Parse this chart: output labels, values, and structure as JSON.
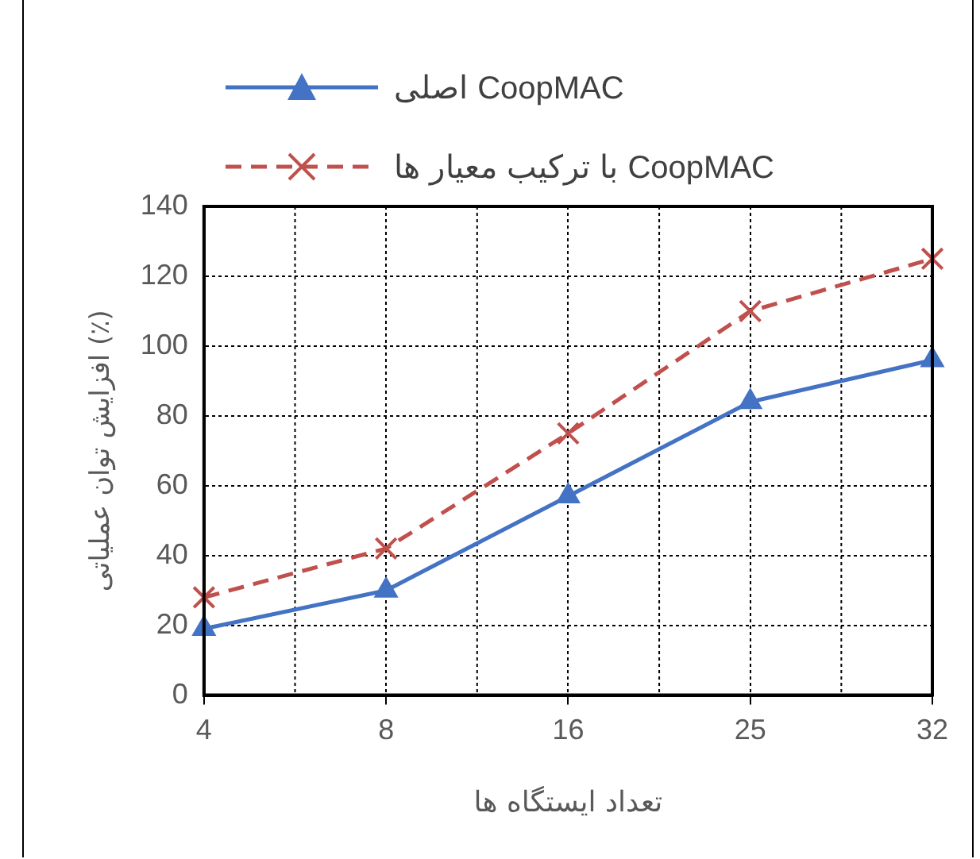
{
  "chart_data": {
    "type": "line",
    "xlabel": "تعداد ایستگاه ها",
    "ylabel": "افزایش توان عملیاتی (٪)",
    "categories": [
      "4",
      "8",
      "16",
      "25",
      "32"
    ],
    "ylim": [
      0,
      140
    ],
    "yticks": [
      0,
      20,
      40,
      60,
      80,
      100,
      120,
      140
    ],
    "grid": true,
    "legend": "top left",
    "series": [
      {
        "name": "CoopMAC اصلی",
        "color": "#4472c4",
        "marker": "triangle",
        "line_style": "solid",
        "values": [
          19,
          30,
          57,
          84,
          96
        ]
      },
      {
        "name": "CoopMAC با ترکیب معیار ها",
        "color": "#c0504d",
        "marker": "cross",
        "line_style": "dashed",
        "values": [
          28,
          42,
          75,
          110,
          125
        ]
      }
    ]
  }
}
